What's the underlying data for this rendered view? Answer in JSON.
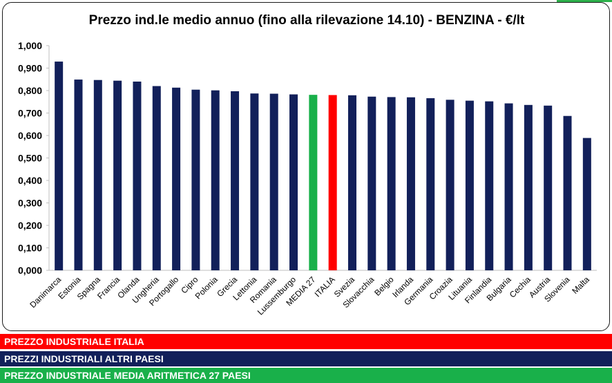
{
  "colors": {
    "italia": "#ff0000",
    "altri": "#12205a",
    "media": "#19b04a",
    "axis": "#bfbfbf"
  },
  "legend": {
    "italia": "PREZZO INDUSTRIALE ITALIA",
    "altri": "PREZZI INDUSTRIALI ALTRI PAESI",
    "media": "PREZZO INDUSTRIALE MEDIA ARITMETICA 27 PAESI"
  },
  "chart_data": {
    "type": "bar",
    "title": "Prezzo ind.le medio annuo (fino alla rilevazione 14.10) - BENZINA - €/lt",
    "xlabel": "",
    "ylabel": "",
    "ylim": [
      0,
      1.0
    ],
    "yticks": [
      "0,000",
      "0,100",
      "0,200",
      "0,300",
      "0,400",
      "0,500",
      "0,600",
      "0,700",
      "0,800",
      "0,900",
      "1,000"
    ],
    "grid": false,
    "categories": [
      "Danimarca",
      "Estonia",
      "Spagna",
      "Francia",
      "Olanda",
      "Ungheria",
      "Portogallo",
      "Cipro",
      "Polonia",
      "Grecia",
      "Lettonia",
      "Romania",
      "Lussemburgo",
      "MEDIA 27",
      "ITALIA",
      "Svezia",
      "Slovacchia",
      "Belgio",
      "Irlanda",
      "Germania",
      "Croazia",
      "Lituania",
      "Finlandia",
      "Bulgaria",
      "Cechia",
      "Austria",
      "Slovenia",
      "Malta"
    ],
    "values": [
      0.929,
      0.849,
      0.847,
      0.844,
      0.84,
      0.82,
      0.813,
      0.804,
      0.801,
      0.797,
      0.787,
      0.786,
      0.783,
      0.781,
      0.78,
      0.779,
      0.773,
      0.771,
      0.77,
      0.766,
      0.759,
      0.755,
      0.752,
      0.743,
      0.736,
      0.733,
      0.687,
      0.589
    ],
    "bar_groups": [
      "altri",
      "altri",
      "altri",
      "altri",
      "altri",
      "altri",
      "altri",
      "altri",
      "altri",
      "altri",
      "altri",
      "altri",
      "altri",
      "media",
      "italia",
      "altri",
      "altri",
      "altri",
      "altri",
      "altri",
      "altri",
      "altri",
      "altri",
      "altri",
      "altri",
      "altri",
      "altri",
      "altri"
    ]
  }
}
